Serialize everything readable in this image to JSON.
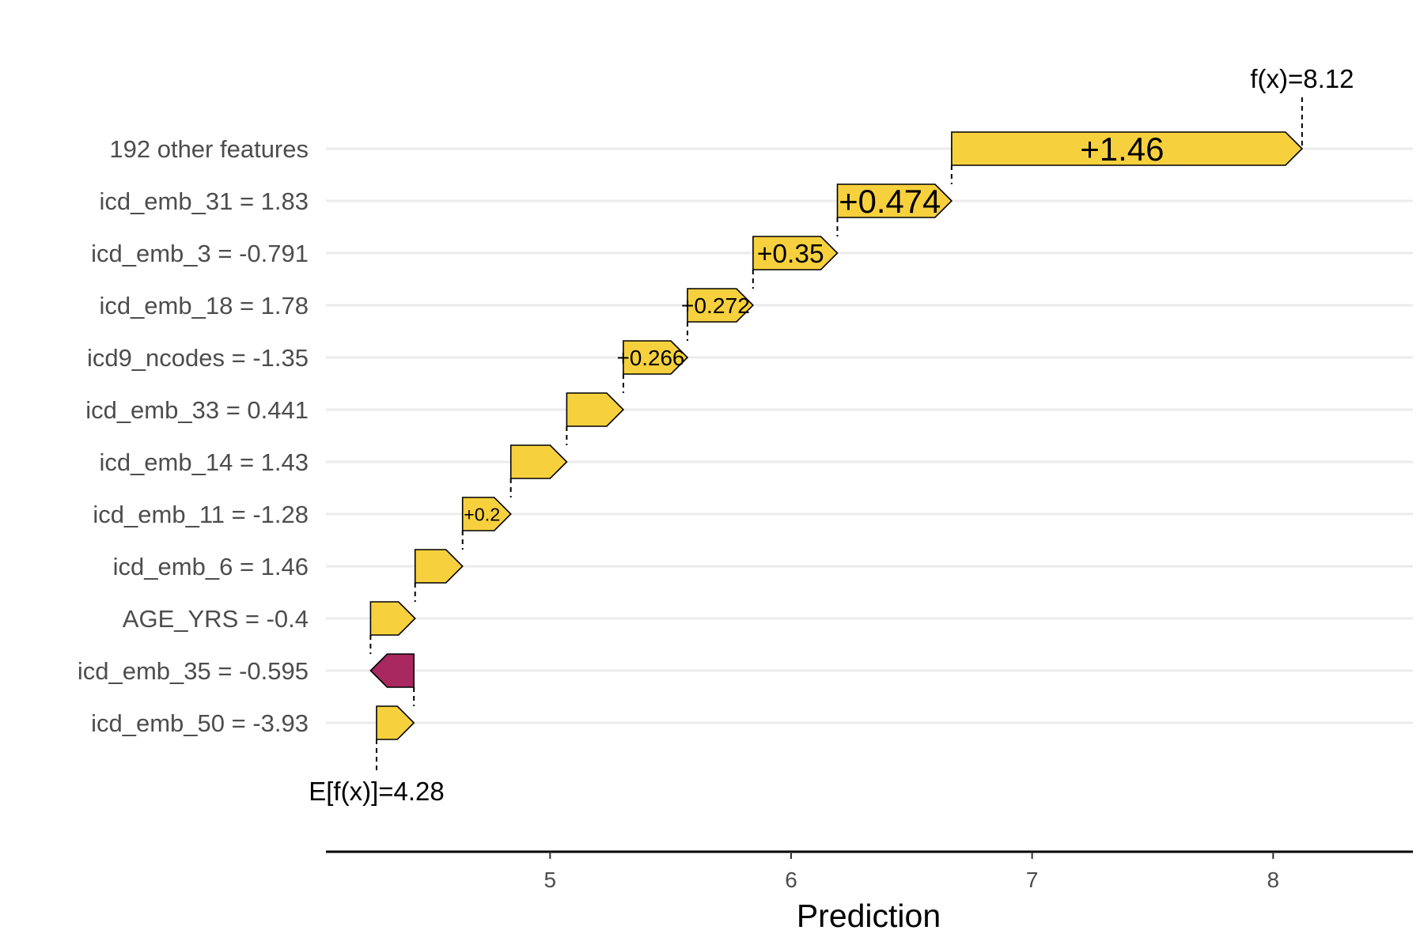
{
  "chart_data": {
    "type": "waterfall",
    "xlabel": "Prediction",
    "xticks": [
      5,
      6,
      7,
      8
    ],
    "xlim": [
      4.07,
      8.58
    ],
    "base_value": 4.28,
    "base_label": "E[f(x)]=4.28",
    "final_value": 8.12,
    "final_label": "f(x)=8.12",
    "features": [
      {
        "label": "192 other features",
        "value": 1.46,
        "value_label": "+1.46"
      },
      {
        "label": "icd_emb_31 = 1.83",
        "value": 0.474,
        "value_label": "+0.474"
      },
      {
        "label": "icd_emb_3 = -0.791",
        "value": 0.35,
        "value_label": "+0.35"
      },
      {
        "label": "icd_emb_18 = 1.78",
        "value": 0.272,
        "value_label": "+0.272"
      },
      {
        "label": "icd9_ncodes = -1.35",
        "value": 0.266,
        "value_label": "+0.266"
      },
      {
        "label": "icd_emb_33 = 0.441",
        "value": 0.235,
        "value_label": ""
      },
      {
        "label": "icd_emb_14 = 1.43",
        "value": 0.232,
        "value_label": ""
      },
      {
        "label": "icd_emb_11 = -1.28",
        "value": 0.2,
        "value_label": "+0.2"
      },
      {
        "label": "icd_emb_6 = 1.46",
        "value": 0.197,
        "value_label": ""
      },
      {
        "label": "AGE_YRS = -0.4",
        "value": 0.185,
        "value_label": ""
      },
      {
        "label": "icd_emb_35 = -0.595",
        "value": -0.18,
        "value_label": ""
      },
      {
        "label": "icd_emb_50 = -3.93",
        "value": 0.155,
        "value_label": ""
      }
    ],
    "colors": {
      "positive": "#F7D13D",
      "negative": "#A8285F"
    }
  }
}
